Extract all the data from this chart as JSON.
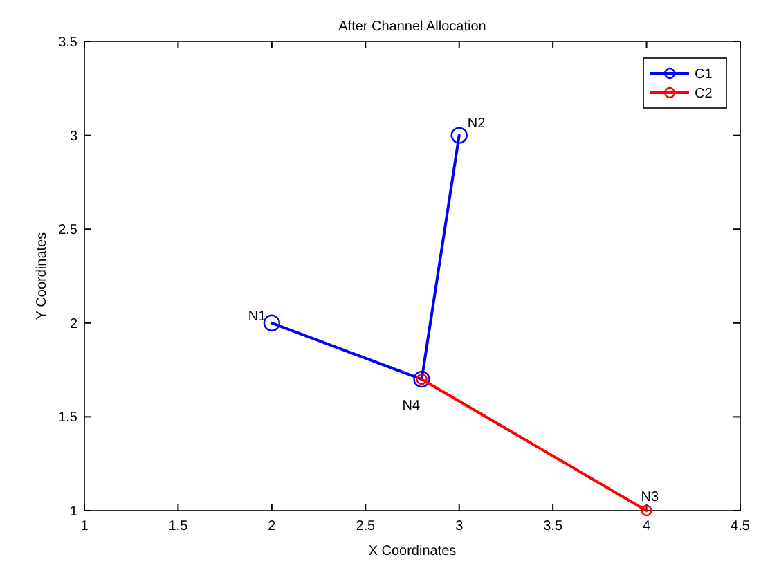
{
  "chart_data": {
    "type": "line",
    "title": "After Channel Allocation",
    "xlabel": "X Coordinates",
    "ylabel": "Y Coordinates",
    "xlim": [
      1,
      4.5
    ],
    "xticks": [
      1,
      1.5,
      2,
      2.5,
      3,
      3.5,
      4,
      4.5
    ],
    "ylim": [
      1,
      3.5
    ],
    "yticks": [
      1,
      1.5,
      2,
      2.5,
      3,
      3.5
    ],
    "series": [
      {
        "name": "C1",
        "color": "#0000ff",
        "x": [
          2,
          2.8,
          3
        ],
        "values": [
          2,
          1.7,
          3
        ]
      },
      {
        "name": "C2",
        "color": "#ff0000",
        "x": [
          2.8,
          4
        ],
        "values": [
          1.7,
          1
        ]
      }
    ],
    "annotations": [
      {
        "text": "N1",
        "x": 2,
        "y": 2
      },
      {
        "text": "N2",
        "x": 3,
        "y": 3
      },
      {
        "text": "N3",
        "x": 4,
        "y": 1
      },
      {
        "text": "N4",
        "x": 2.8,
        "y": 1.7
      }
    ],
    "marker": "circle",
    "line_style": "solid",
    "grid": false,
    "legend": "top right"
  }
}
